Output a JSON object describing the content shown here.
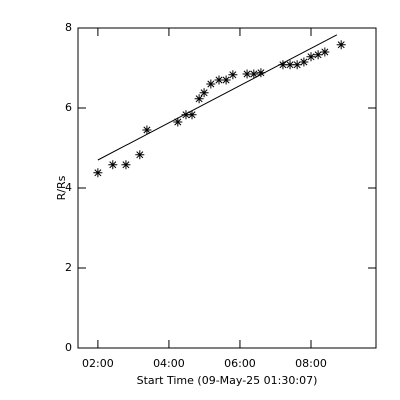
{
  "chart_data": {
    "type": "scatter",
    "xlabel": "Start Time (09-May-25 01:30:07)",
    "ylabel": "R/Rs",
    "xlim": [
      1.44,
      9.83
    ],
    "ylim": [
      0,
      8
    ],
    "xticks": [
      {
        "value": 2,
        "label": "02:00"
      },
      {
        "value": 4,
        "label": "04:00"
      },
      {
        "value": 6,
        "label": "06:00"
      },
      {
        "value": 8,
        "label": "08:00"
      }
    ],
    "yticks": [
      0,
      2,
      4,
      6,
      8
    ],
    "color": "#000000",
    "series": [
      {
        "kind": "points",
        "x": [
          2.0,
          2.42,
          2.79,
          3.18,
          3.38,
          4.25,
          4.48,
          4.65,
          4.85,
          4.99,
          5.18,
          5.41,
          5.61,
          5.8,
          6.2,
          6.39,
          6.59,
          7.21,
          7.41,
          7.61,
          7.8,
          8.0,
          8.2,
          8.39,
          8.85
        ],
        "values": [
          4.38,
          4.58,
          4.58,
          4.83,
          5.45,
          5.65,
          5.83,
          5.83,
          6.23,
          6.38,
          6.6,
          6.7,
          6.7,
          6.83,
          6.85,
          6.85,
          6.88,
          7.08,
          7.08,
          7.08,
          7.15,
          7.28,
          7.33,
          7.4,
          7.58
        ]
      },
      {
        "kind": "fit",
        "x": [
          2.0,
          8.73
        ],
        "values": [
          4.7,
          7.83
        ]
      }
    ]
  }
}
